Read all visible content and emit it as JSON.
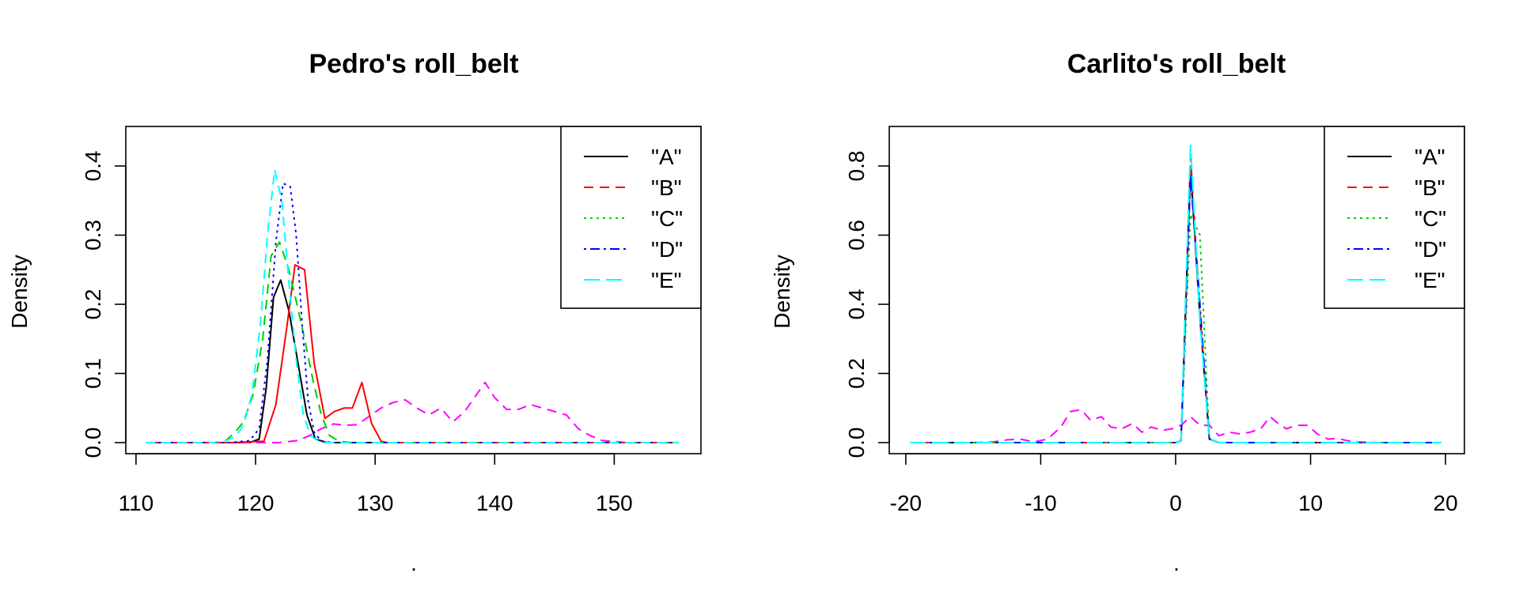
{
  "chart_data": [
    {
      "type": "line",
      "title": "Pedro's roll_belt",
      "xlabel": ".",
      "ylabel": "Density",
      "xlim": [
        110.8,
        155.4
      ],
      "ylim": [
        0,
        0.4
      ],
      "x_ticks": [
        "110",
        "120",
        "130",
        "140",
        "150"
      ],
      "x_tick_values": [
        110,
        120,
        130,
        140,
        150
      ],
      "y_ticks": [
        "0.0",
        "0.1",
        "0.2",
        "0.3",
        "0.4"
      ],
      "y_tick_values": [
        0,
        0.1,
        0.2,
        0.3,
        0.4
      ],
      "grid": false,
      "legend": {
        "position": "top-right",
        "entries": [
          "\"A\"",
          "\"B\"",
          "\"C\"",
          "\"D\"",
          "\"E\""
        ]
      },
      "series": [
        {
          "name": "\"A\"",
          "color": "#000000",
          "dash": "solid",
          "x": [
            110.8,
            112,
            114,
            116,
            118,
            119.5,
            120.3,
            120.9,
            121.5,
            122.1,
            122.8,
            123.5,
            124.3,
            125,
            126,
            128,
            130,
            135,
            140,
            145,
            150,
            155.4
          ],
          "y": [
            0,
            0,
            0,
            0,
            0,
            0,
            0.005,
            0.08,
            0.21,
            0.235,
            0.19,
            0.12,
            0.04,
            0.005,
            0,
            0,
            0,
            0,
            0,
            0,
            0,
            0
          ]
        },
        {
          "name": "\"B\"",
          "color": "#ff0000",
          "dash": "solid",
          "x": [
            110.8,
            114,
            118,
            120.7,
            121.7,
            122.6,
            123.3,
            124.1,
            124.9,
            125.8,
            126.6,
            127.4,
            128.1,
            128.9,
            129.7,
            130.5,
            131,
            135,
            140,
            145,
            150,
            155.4
          ],
          "y": [
            0,
            0,
            0,
            0.002,
            0.055,
            0.165,
            0.257,
            0.25,
            0.115,
            0.035,
            0.045,
            0.05,
            0.05,
            0.087,
            0.028,
            0.002,
            0,
            0,
            0,
            0,
            0,
            0
          ],
          "dup": [
            {
              "color": "#ff00ff",
              "dash": "dashed",
              "x": [
                110.8,
                115,
                120,
                122,
                123.5,
                124.5,
                125.5,
                126.5,
                127.5,
                128.5,
                129.5,
                130.5,
                131.5,
                132.5,
                133.5,
                134.5,
                135.5,
                136.5,
                137.5,
                138.5,
                139.2,
                140,
                141,
                142,
                143,
                144,
                145,
                146,
                147,
                148,
                149,
                151,
                155.4
              ],
              "y": [
                0,
                0,
                0,
                0,
                0.003,
                0.01,
                0.02,
                0.027,
                0.025,
                0.026,
                0.038,
                0.05,
                0.058,
                0.062,
                0.05,
                0.04,
                0.05,
                0.03,
                0.045,
                0.07,
                0.087,
                0.065,
                0.048,
                0.048,
                0.055,
                0.05,
                0.045,
                0.04,
                0.02,
                0.01,
                0.003,
                0,
                0
              ]
            }
          ]
        },
        {
          "name": "\"C\"",
          "color": "#00cc00",
          "dash": "dashed",
          "x": [
            110.8,
            114,
            116.5,
            117.5,
            118.3,
            119,
            119.8,
            120.6,
            121.3,
            122,
            122.7,
            123.4,
            124.1,
            124.8,
            125.5,
            126.2,
            127,
            128,
            130,
            140,
            150,
            155.4
          ],
          "y": [
            0,
            0,
            0,
            0.003,
            0.015,
            0.03,
            0.07,
            0.15,
            0.27,
            0.29,
            0.255,
            0.205,
            0.15,
            0.09,
            0.04,
            0.01,
            0.002,
            0,
            0,
            0,
            0,
            0
          ],
          "dotted_overlay": true
        },
        {
          "name": "\"D\"",
          "color": "#0000ff",
          "dash": "dotted",
          "x": [
            110.8,
            115,
            118,
            119.5,
            120.3,
            121,
            121.7,
            122.3,
            122.9,
            123.4,
            123.9,
            124.4,
            124.9,
            125.5,
            126.5,
            130,
            140,
            150,
            155.4
          ],
          "y": [
            0,
            0,
            0,
            0.003,
            0.02,
            0.12,
            0.29,
            0.375,
            0.37,
            0.3,
            0.17,
            0.06,
            0.015,
            0.002,
            0,
            0,
            0,
            0,
            0
          ]
        },
        {
          "name": "\"E\"",
          "color": "#00ffff",
          "dash": "dashed",
          "x": [
            110.8,
            114,
            116.5,
            117.5,
            118.3,
            119,
            119.7,
            120.4,
            121,
            121.6,
            122.2,
            122.8,
            123.4,
            124,
            124.6,
            125.3,
            126,
            128,
            130,
            140,
            150,
            155.4
          ],
          "y": [
            0,
            0,
            0,
            0.003,
            0.008,
            0.025,
            0.07,
            0.17,
            0.3,
            0.395,
            0.35,
            0.23,
            0.12,
            0.04,
            0.01,
            0.002,
            0,
            0,
            0,
            0,
            0,
            0
          ]
        }
      ]
    },
    {
      "type": "line",
      "title": "Carlito's roll_belt",
      "xlabel": ".",
      "ylabel": "Density",
      "xlim": [
        -19.7,
        19.7
      ],
      "ylim": [
        0,
        0.8
      ],
      "x_ticks": [
        "-20",
        "-10",
        "0",
        "10",
        "20"
      ],
      "x_tick_values": [
        -20,
        -10,
        0,
        10,
        20
      ],
      "y_ticks": [
        "0.0",
        "0.2",
        "0.4",
        "0.6",
        "0.8"
      ],
      "y_tick_values": [
        0,
        0.2,
        0.4,
        0.6,
        0.8
      ],
      "grid": false,
      "legend": {
        "position": "top-right",
        "entries": [
          "\"A\"",
          "\"B\"",
          "\"C\"",
          "\"D\"",
          "\"E\""
        ]
      },
      "series": [
        {
          "name": "\"A\"",
          "color": "#000000",
          "dash": "solid",
          "x": [
            -19.7,
            -10,
            -2,
            0,
            0.4,
            1.1,
            1.8,
            2.5,
            3.2,
            6,
            10,
            19.7
          ],
          "y": [
            0,
            0,
            0,
            0,
            0.005,
            0.8,
            0.36,
            0.01,
            0,
            0,
            0,
            0
          ]
        },
        {
          "name": "\"B\"",
          "color": "#ff0000",
          "dash": "dashed",
          "x": [
            -19.7,
            -10,
            -2,
            0,
            0.4,
            1.1,
            1.8,
            2.5,
            3.2,
            6,
            10,
            19.7
          ],
          "y": [
            0,
            0,
            0,
            0,
            0.005,
            0.83,
            0.38,
            0.01,
            0,
            0,
            0,
            0
          ],
          "dup": [
            {
              "color": "#ff00ff",
              "dash": "dashed",
              "x": [
                -19.7,
                -15,
                -13.5,
                -12.5,
                -11.5,
                -10.5,
                -9.5,
                -8.5,
                -7.8,
                -7,
                -6.3,
                -5.5,
                -4.8,
                -4,
                -3.2,
                -2.5,
                -1.8,
                -1,
                -0.3,
                0.4,
                1.1,
                1.8,
                2.5,
                3.2,
                4,
                4.8,
                5.5,
                6.3,
                7,
                7.6,
                8.2,
                9,
                9.8,
                10.5,
                11.3,
                12,
                12.8,
                13.5,
                15,
                19.7
              ],
              "y": [
                0,
                0,
                0.002,
                0.008,
                0.01,
                0.002,
                0.01,
                0.045,
                0.09,
                0.095,
                0.065,
                0.075,
                0.045,
                0.04,
                0.055,
                0.03,
                0.045,
                0.035,
                0.04,
                0.05,
                0.075,
                0.05,
                0.05,
                0.02,
                0.03,
                0.025,
                0.03,
                0.04,
                0.075,
                0.055,
                0.04,
                0.05,
                0.05,
                0.025,
                0.01,
                0.012,
                0.005,
                0.002,
                0,
                0
              ]
            }
          ]
        },
        {
          "name": "\"C\"",
          "color": "#00cc00",
          "dash": "dotted",
          "x": [
            -19.7,
            -10,
            -2,
            0,
            0.4,
            1.1,
            1.8,
            2.5,
            3.2,
            6,
            10,
            19.7
          ],
          "y": [
            0,
            0,
            0,
            0,
            0.005,
            0.66,
            0.6,
            0.01,
            0,
            0,
            0,
            0
          ]
        },
        {
          "name": "\"D\"",
          "color": "#0000ff",
          "dash": "dashdot",
          "x": [
            -19.7,
            -10,
            -2,
            0,
            0.4,
            1.1,
            1.8,
            2.5,
            3.2,
            6,
            10,
            19.7
          ],
          "y": [
            0,
            0,
            0,
            0,
            0.005,
            0.77,
            0.4,
            0.01,
            0,
            0,
            0,
            0
          ]
        },
        {
          "name": "\"E\"",
          "color": "#00ffff",
          "dash": "longdash",
          "x": [
            -19.7,
            -10,
            -2,
            0,
            0.4,
            1.1,
            1.8,
            2.5,
            3.2,
            6,
            10,
            19.7
          ],
          "y": [
            0,
            0,
            0,
            0,
            0.005,
            0.86,
            0.35,
            0.01,
            0,
            0,
            0,
            0
          ]
        }
      ]
    }
  ]
}
